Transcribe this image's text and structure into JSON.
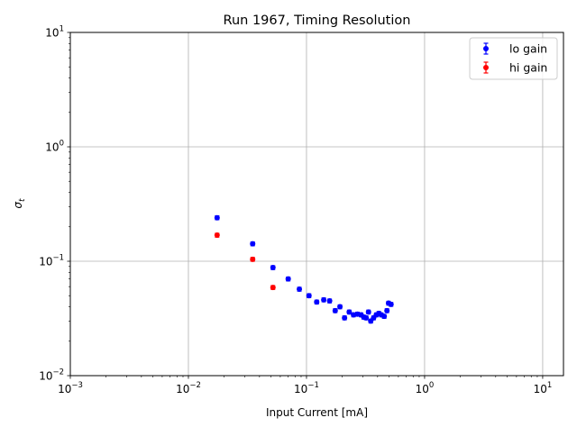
{
  "chart_data": {
    "type": "scatter",
    "title": "Run 1967, Timing Resolution",
    "xlabel": "Input Current [mA]",
    "ylabel": "σ",
    "ylabel_sub": "t",
    "xscale": "log",
    "yscale": "log",
    "xlim": [
      0.001,
      15
    ],
    "ylim": [
      0.01,
      10
    ],
    "grid": true,
    "legend_position": "top-right",
    "x_ticks": [
      {
        "value": 0.001,
        "base": "10",
        "exp": "−3"
      },
      {
        "value": 0.01,
        "base": "10",
        "exp": "−2"
      },
      {
        "value": 0.1,
        "base": "10",
        "exp": "−1"
      },
      {
        "value": 1,
        "base": "10",
        "exp": "0"
      },
      {
        "value": 10,
        "base": "10",
        "exp": "1"
      }
    ],
    "y_ticks": [
      {
        "value": 0.01,
        "base": "10",
        "exp": "−2"
      },
      {
        "value": 0.1,
        "base": "10",
        "exp": "−1"
      },
      {
        "value": 1,
        "base": "10",
        "exp": "0"
      },
      {
        "value": 10,
        "base": "10",
        "exp": "1"
      }
    ],
    "series": [
      {
        "name": "lo gain",
        "color": "#0000ff",
        "points": [
          [
            0.0175,
            0.24
          ],
          [
            0.035,
            0.142
          ],
          [
            0.052,
            0.088
          ],
          [
            0.07,
            0.07
          ],
          [
            0.087,
            0.057
          ],
          [
            0.105,
            0.05
          ],
          [
            0.122,
            0.044
          ],
          [
            0.14,
            0.046
          ],
          [
            0.157,
            0.045
          ],
          [
            0.175,
            0.037
          ],
          [
            0.192,
            0.04
          ],
          [
            0.21,
            0.032
          ],
          [
            0.23,
            0.036
          ],
          [
            0.25,
            0.034
          ],
          [
            0.27,
            0.0345
          ],
          [
            0.29,
            0.034
          ],
          [
            0.305,
            0.0325
          ],
          [
            0.32,
            0.032
          ],
          [
            0.335,
            0.036
          ],
          [
            0.35,
            0.03
          ],
          [
            0.37,
            0.032
          ],
          [
            0.39,
            0.034
          ],
          [
            0.41,
            0.035
          ],
          [
            0.43,
            0.034
          ],
          [
            0.455,
            0.033
          ],
          [
            0.48,
            0.037
          ],
          [
            0.495,
            0.043
          ],
          [
            0.52,
            0.042
          ]
        ]
      },
      {
        "name": "hi gain",
        "color": "#ff0000",
        "points": [
          [
            0.0175,
            0.169
          ],
          [
            0.035,
            0.104
          ],
          [
            0.052,
            0.059
          ]
        ]
      }
    ]
  }
}
